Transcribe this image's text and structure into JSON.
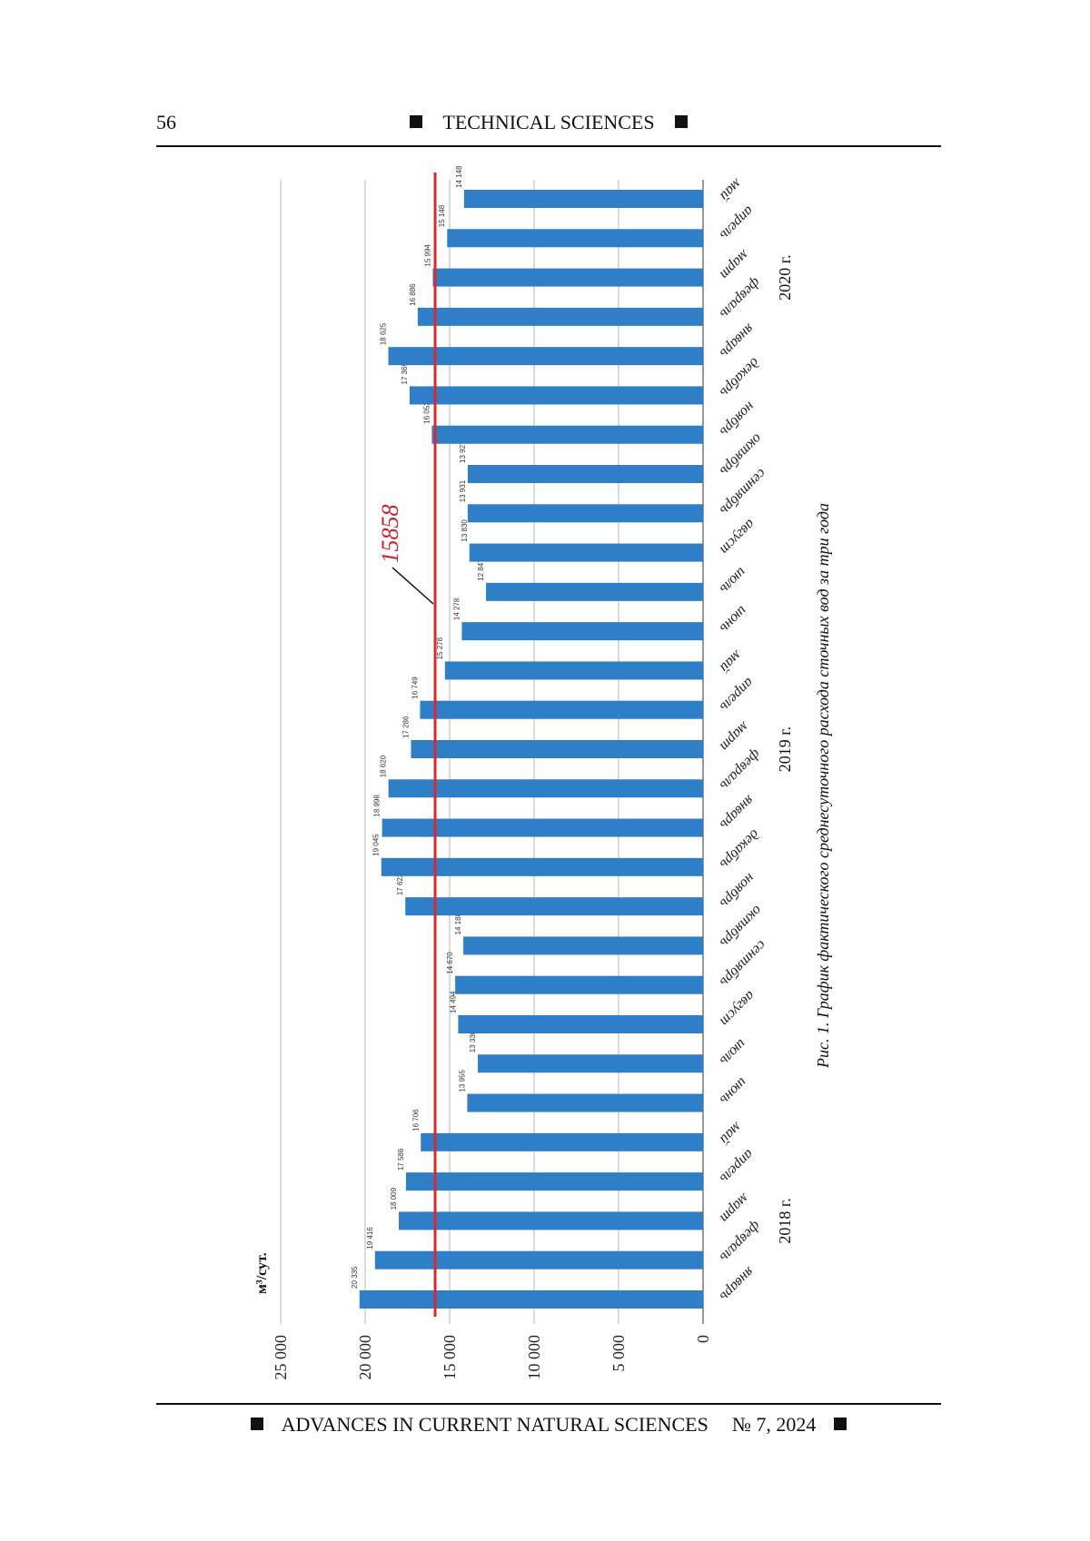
{
  "header": {
    "page_number": "56",
    "section": "TECHNICAL SCIENCES"
  },
  "footer": {
    "journal": "ADVANCES IN CURRENT NATURAL SCIENCES",
    "issue": "№ 7, 2024"
  },
  "figure": {
    "caption": "Рис. 1. График фактического среднесуточного расхода сточных вод за три года"
  },
  "colors": {
    "bar": "#2f7ec8",
    "reference_line": "#e0262b",
    "gridline": "#b5b5b5",
    "text": "#111111"
  },
  "chart_data": {
    "type": "bar",
    "orientation": "vertical bars shown in a page rotated 90 degrees clockwise",
    "ylabel": "м³/сут.",
    "ylim": [
      0,
      25000
    ],
    "yticks": [
      0,
      5000,
      10000,
      15000,
      20000,
      25000
    ],
    "ytick_labels": [
      "0",
      "5 000",
      "10 000",
      "15 000",
      "20 000",
      "25 000"
    ],
    "grid": true,
    "categories": [
      "январь",
      "февраль",
      "март",
      "апрель",
      "май",
      "июнь",
      "июль",
      "август",
      "сентябрь",
      "октябрь",
      "ноябрь",
      "декабрь",
      "январь",
      "февраль",
      "март",
      "апрель",
      "май",
      "июнь",
      "июль",
      "август",
      "сентябрь",
      "октябрь",
      "ноябрь",
      "декабрь",
      "январь",
      "февраль",
      "март",
      "апрель",
      "май"
    ],
    "values": [
      20335,
      19416,
      18009,
      17586,
      16706,
      13955,
      13330,
      14494,
      14670,
      14188,
      17622,
      19045,
      18998,
      18620,
      17286,
      16749,
      15278,
      14278,
      12847,
      13830,
      13931,
      13927,
      16052,
      17369,
      18625,
      16886,
      15994,
      15148,
      14148
    ],
    "value_labels": [
      "20 335",
      "19 416",
      "18 009",
      "17 586",
      "16 706",
      "13 955",
      "13 330",
      "14 494",
      "14 670",
      "14 188",
      "17 622",
      "19 045",
      "18 998",
      "18 620",
      "17 286",
      "16 749",
      "15 278",
      "14 278",
      "12 847",
      "13 830",
      "13 931",
      "13 927",
      "16 052",
      "17 369",
      "18 625",
      "16 886",
      "15 994",
      "15 148",
      "14 148"
    ],
    "reference_line": {
      "value": 15858,
      "label": "15858"
    },
    "year_groups": [
      {
        "label": "2018 г.",
        "first_index": 0,
        "last_index": 4
      },
      {
        "label": "2019 г.",
        "first_index": 12,
        "last_index": 16
      },
      {
        "label": "2020 г.",
        "first_index": 24,
        "last_index": 28
      }
    ]
  }
}
